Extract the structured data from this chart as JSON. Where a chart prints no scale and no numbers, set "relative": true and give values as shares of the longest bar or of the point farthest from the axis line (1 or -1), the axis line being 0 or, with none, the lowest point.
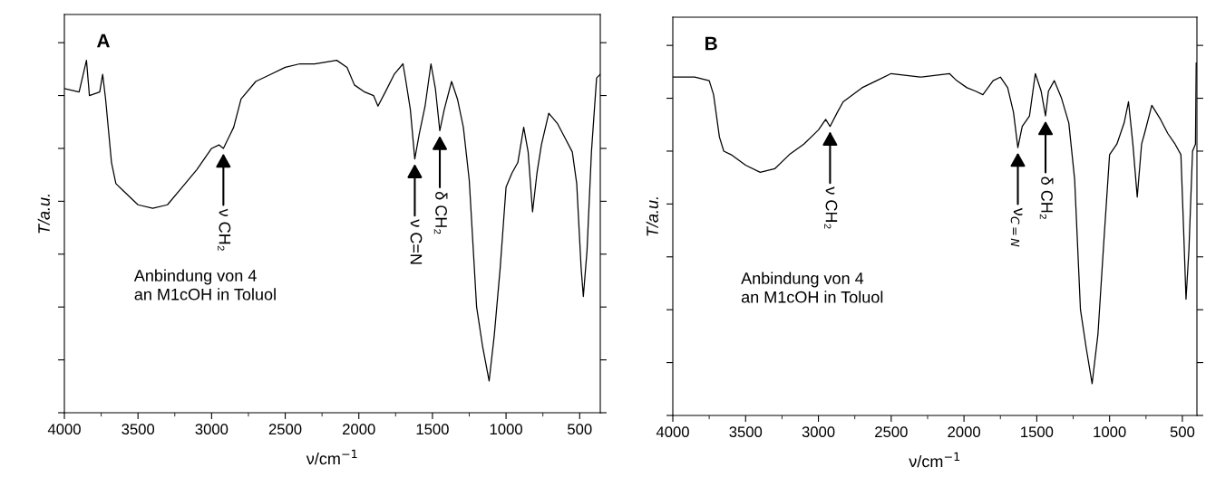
{
  "chart_data": [
    {
      "type": "line",
      "title": "A",
      "relative": true,
      "xlabel": "ν/cm$^{−1}$",
      "ylabel": "T/a.u.",
      "tick_labels": "x",
      "xlim": [
        4000,
        360
      ],
      "xticks": [
        4000,
        3500,
        3000,
        2500,
        2000,
        1500,
        1000,
        500
      ],
      "series": [
        {
          "color": "#000000",
          "x": [
            4000,
            3900,
            3850,
            3830,
            3760,
            3740,
            3720,
            3700,
            3680,
            3650,
            3600,
            3500,
            3400,
            3300,
            3200,
            3100,
            3000,
            2950,
            2920,
            2850,
            2800,
            2700,
            2600,
            2500,
            2400,
            2300,
            2150,
            2080,
            2030,
            1960,
            1900,
            1870,
            1820,
            1760,
            1700,
            1680,
            1650,
            1620,
            1590,
            1550,
            1510,
            1480,
            1450,
            1420,
            1370,
            1330,
            1290,
            1250,
            1200,
            1160,
            1115,
            1080,
            1040,
            1000,
            960,
            920,
            880,
            850,
            820,
            790,
            760,
            710,
            650,
            600,
            550,
            520,
            490,
            475,
            450,
            420,
            385,
            360
          ],
          "values": [
            0.92,
            0.91,
            1.0,
            0.9,
            0.91,
            0.96,
            0.89,
            0.8,
            0.71,
            0.65,
            0.63,
            0.59,
            0.58,
            0.59,
            0.64,
            0.69,
            0.75,
            0.76,
            0.75,
            0.81,
            0.89,
            0.94,
            0.96,
            0.98,
            0.99,
            0.99,
            1.0,
            0.98,
            0.93,
            0.91,
            0.9,
            0.87,
            0.91,
            0.96,
            0.99,
            0.94,
            0.86,
            0.72,
            0.79,
            0.87,
            0.99,
            0.92,
            0.8,
            0.86,
            0.94,
            0.89,
            0.81,
            0.66,
            0.3,
            0.19,
            0.09,
            0.22,
            0.41,
            0.64,
            0.68,
            0.71,
            0.81,
            0.74,
            0.57,
            0.68,
            0.76,
            0.85,
            0.82,
            0.78,
            0.74,
            0.65,
            0.41,
            0.33,
            0.46,
            0.74,
            0.95,
            0.96
          ]
        }
      ],
      "annotations": [
        {
          "text": "ν CH₂",
          "x": 2920,
          "y": 0.75
        },
        {
          "text": "ν C=N",
          "x": 1620,
          "y": 0.72
        },
        {
          "text": "δ CH₂",
          "x": 1450,
          "y": 0.8
        },
        "Anbindung von 4\nan M1cOH in Toluol"
      ]
    },
    {
      "type": "line",
      "title": "B",
      "relative": true,
      "xlabel": "ν/cm$^{−1}$",
      "ylabel": "T/a.u.",
      "tick_labels": "x",
      "xlim": [
        4000,
        400
      ],
      "xticks": [
        4000,
        3500,
        3000,
        2500,
        2000,
        1500,
        1000,
        500
      ],
      "series": [
        {
          "color": "#000000",
          "x": [
            4000,
            3850,
            3750,
            3720,
            3680,
            3650,
            3600,
            3500,
            3400,
            3300,
            3200,
            3100,
            3000,
            2950,
            2920,
            2870,
            2830,
            2700,
            2600,
            2500,
            2300,
            2100,
            2050,
            1980,
            1920,
            1870,
            1800,
            1750,
            1700,
            1660,
            1630,
            1600,
            1550,
            1510,
            1470,
            1440,
            1420,
            1380,
            1330,
            1280,
            1240,
            1200,
            1160,
            1120,
            1080,
            1040,
            1000,
            950,
            900,
            870,
            840,
            810,
            780,
            760,
            710,
            650,
            600,
            550,
            510,
            490,
            475,
            455,
            430,
            410,
            405
          ],
          "values": [
            0.96,
            0.96,
            0.95,
            0.91,
            0.79,
            0.75,
            0.74,
            0.71,
            0.69,
            0.7,
            0.74,
            0.77,
            0.81,
            0.84,
            0.82,
            0.86,
            0.89,
            0.93,
            0.95,
            0.97,
            0.96,
            0.97,
            0.95,
            0.93,
            0.92,
            0.91,
            0.95,
            0.96,
            0.93,
            0.86,
            0.76,
            0.82,
            0.85,
            0.97,
            0.92,
            0.85,
            0.92,
            0.95,
            0.9,
            0.83,
            0.67,
            0.3,
            0.19,
            0.09,
            0.23,
            0.49,
            0.74,
            0.77,
            0.83,
            0.89,
            0.77,
            0.62,
            0.77,
            0.8,
            0.88,
            0.84,
            0.8,
            0.77,
            0.74,
            0.51,
            0.33,
            0.47,
            0.75,
            0.77,
            1.0
          ]
        }
      ],
      "annotations": [
        {
          "text": "ν CH₂",
          "x": 2920,
          "y": 0.82
        },
        {
          "text": "ν$_{C=N}$",
          "x": 1630,
          "y": 0.76
        },
        {
          "text": "δ CH₂",
          "x": 1440,
          "y": 0.85
        },
        "Anbindung von 4\nan M1cOH in Toluol"
      ]
    }
  ]
}
